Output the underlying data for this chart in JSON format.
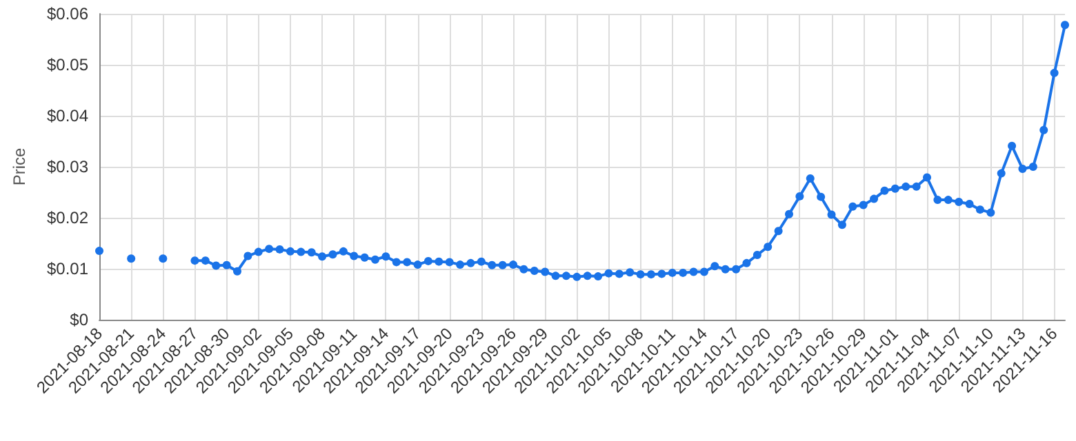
{
  "chart_data": {
    "type": "line",
    "ylabel": "Price",
    "color": "#1a73e8",
    "marker": "circle",
    "line_style": "solid",
    "grid": true,
    "x": [
      "2021-08-18",
      "2021-08-19",
      "2021-08-20",
      "2021-08-21",
      "2021-08-22",
      "2021-08-23",
      "2021-08-24",
      "2021-08-25",
      "2021-08-26",
      "2021-08-27",
      "2021-08-28",
      "2021-08-29",
      "2021-08-30",
      "2021-08-31",
      "2021-09-01",
      "2021-09-02",
      "2021-09-03",
      "2021-09-04",
      "2021-09-05",
      "2021-09-06",
      "2021-09-07",
      "2021-09-08",
      "2021-09-09",
      "2021-09-10",
      "2021-09-11",
      "2021-09-12",
      "2021-09-13",
      "2021-09-14",
      "2021-09-15",
      "2021-09-16",
      "2021-09-17",
      "2021-09-18",
      "2021-09-19",
      "2021-09-20",
      "2021-09-21",
      "2021-09-22",
      "2021-09-23",
      "2021-09-24",
      "2021-09-25",
      "2021-09-26",
      "2021-09-27",
      "2021-09-28",
      "2021-09-29",
      "2021-09-30",
      "2021-10-01",
      "2021-10-02",
      "2021-10-03",
      "2021-10-04",
      "2021-10-05",
      "2021-10-06",
      "2021-10-07",
      "2021-10-08",
      "2021-10-09",
      "2021-10-10",
      "2021-10-11",
      "2021-10-12",
      "2021-10-13",
      "2021-10-14",
      "2021-10-15",
      "2021-10-16",
      "2021-10-17",
      "2021-10-18",
      "2021-10-19",
      "2021-10-20",
      "2021-10-21",
      "2021-10-22",
      "2021-10-23",
      "2021-10-24",
      "2021-10-25",
      "2021-10-26",
      "2021-10-27",
      "2021-10-28",
      "2021-10-29",
      "2021-10-30",
      "2021-10-31",
      "2021-11-01",
      "2021-11-02",
      "2021-11-03",
      "2021-11-04",
      "2021-11-05",
      "2021-11-06",
      "2021-11-07",
      "2021-11-08",
      "2021-11-09",
      "2021-11-10",
      "2021-11-11",
      "2021-11-12",
      "2021-11-13",
      "2021-11-14",
      "2021-11-15",
      "2021-11-16",
      "2021-11-17"
    ],
    "values": [
      0.0135,
      null,
      null,
      0.012,
      null,
      null,
      0.012,
      null,
      null,
      0.0116,
      0.0116,
      0.0106,
      0.0107,
      0.0095,
      0.0125,
      0.0133,
      0.0139,
      0.0138,
      0.0134,
      0.0133,
      0.0132,
      0.0124,
      0.0128,
      0.0134,
      0.0125,
      0.0122,
      0.0118,
      0.0124,
      0.0113,
      0.0113,
      0.0108,
      0.0115,
      0.0114,
      0.0113,
      0.0108,
      0.0111,
      0.0114,
      0.0107,
      0.0107,
      0.0108,
      0.0099,
      0.0096,
      0.0094,
      0.0086,
      0.0086,
      0.0084,
      0.0086,
      0.0085,
      0.0091,
      0.009,
      0.0093,
      0.0089,
      0.0089,
      0.009,
      0.0092,
      0.0092,
      0.0094,
      0.0094,
      0.0105,
      0.0099,
      0.0099,
      0.0111,
      0.0127,
      0.0143,
      0.0174,
      0.0207,
      0.0242,
      0.0277,
      0.0241,
      0.0206,
      0.0186,
      0.0222,
      0.0225,
      0.0237,
      0.0253,
      0.0257,
      0.0261,
      0.0261,
      0.0279,
      0.0235,
      0.0235,
      0.0231,
      0.0227,
      0.0216,
      0.021,
      0.0287,
      0.0341,
      0.0296,
      0.03,
      0.0372,
      0.0484,
      0.0578
    ],
    "xlim": [
      "2021-08-18",
      "2021-11-17"
    ],
    "xticks": [
      "2021-08-18",
      "2021-08-21",
      "2021-08-24",
      "2021-08-27",
      "2021-08-30",
      "2021-09-02",
      "2021-09-05",
      "2021-09-08",
      "2021-09-11",
      "2021-09-14",
      "2021-09-17",
      "2021-09-20",
      "2021-09-23",
      "2021-09-26",
      "2021-09-29",
      "2021-10-02",
      "2021-10-05",
      "2021-10-08",
      "2021-10-11",
      "2021-10-14",
      "2021-10-17",
      "2021-10-20",
      "2021-10-23",
      "2021-10-26",
      "2021-10-29",
      "2021-11-01",
      "2021-11-04",
      "2021-11-07",
      "2021-11-10",
      "2021-11-13",
      "2021-11-16"
    ],
    "ylim": [
      0,
      0.06
    ],
    "yticks": [
      {
        "value": 0,
        "label": "$0"
      },
      {
        "value": 0.01,
        "label": "$0.01"
      },
      {
        "value": 0.02,
        "label": "$0.02"
      },
      {
        "value": 0.03,
        "label": "$0.03"
      },
      {
        "value": 0.04,
        "label": "$0.04"
      },
      {
        "value": 0.05,
        "label": "$0.05"
      },
      {
        "value": 0.06,
        "label": "$0.06"
      }
    ]
  }
}
